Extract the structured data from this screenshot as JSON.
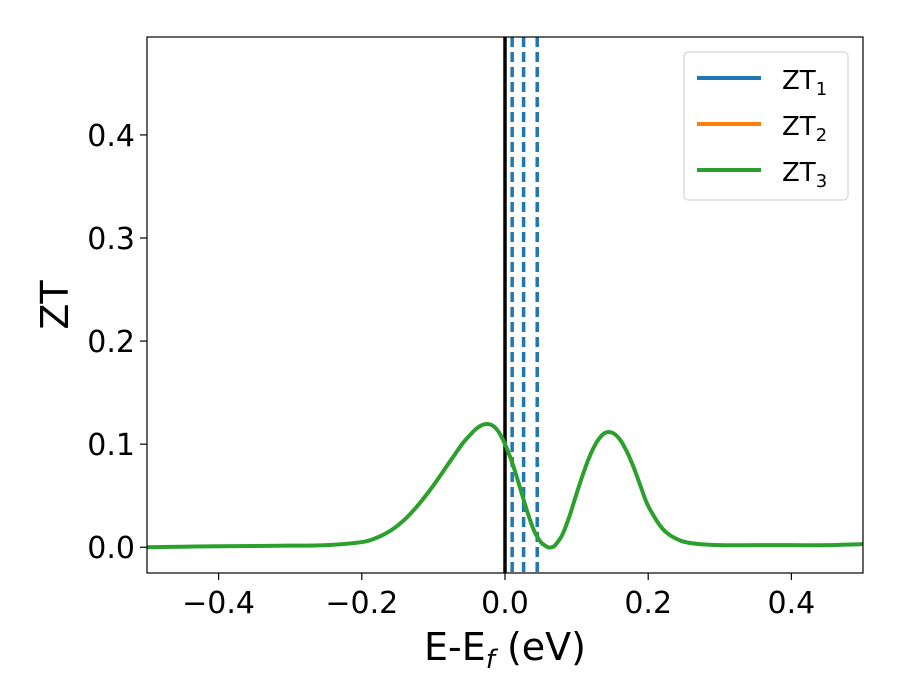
{
  "chart_data": {
    "type": "line",
    "xlabel": {
      "main": "E-E",
      "sub": "f",
      "tail": " (eV)"
    },
    "ylabel": "ZT",
    "xlim": [
      -0.5,
      0.5
    ],
    "ylim": [
      -0.025,
      0.495
    ],
    "xticks": [
      -0.4,
      -0.2,
      0.0,
      0.2,
      0.4
    ],
    "xtick_labels": [
      "−0.4",
      "−0.2",
      "0.0",
      "0.2",
      "0.4"
    ],
    "yticks": [
      0.0,
      0.1,
      0.2,
      0.3,
      0.4
    ],
    "ytick_labels": [
      "0.0",
      "0.1",
      "0.2",
      "0.3",
      "0.4"
    ],
    "grid": false,
    "legend": {
      "placement": "top-right",
      "entries": [
        {
          "main": "ZT",
          "sub": "1",
          "color": "#1f77b4"
        },
        {
          "main": "ZT",
          "sub": "2",
          "color": "#ff7f0e"
        },
        {
          "main": "ZT",
          "sub": "3",
          "color": "#2ca02c"
        }
      ]
    },
    "series": [
      {
        "color": "#2ca02c",
        "x": [
          -0.5,
          -0.45,
          -0.4,
          -0.35,
          -0.3,
          -0.25,
          -0.2,
          -0.18,
          -0.16,
          -0.14,
          -0.12,
          -0.1,
          -0.08,
          -0.06,
          -0.05,
          -0.04,
          -0.03,
          -0.02,
          -0.01,
          0.0,
          0.01,
          0.02,
          0.03,
          0.04,
          0.05,
          0.06,
          0.065,
          0.07,
          0.08,
          0.09,
          0.1,
          0.11,
          0.12,
          0.13,
          0.14,
          0.15,
          0.16,
          0.17,
          0.18,
          0.19,
          0.2,
          0.22,
          0.24,
          0.26,
          0.3,
          0.35,
          0.4,
          0.45,
          0.5
        ],
        "y": [
          0.0,
          0.0005,
          0.001,
          0.0012,
          0.0015,
          0.002,
          0.005,
          0.009,
          0.016,
          0.027,
          0.042,
          0.06,
          0.08,
          0.1,
          0.108,
          0.115,
          0.119,
          0.119,
          0.113,
          0.1,
          0.082,
          0.06,
          0.037,
          0.017,
          0.005,
          0.0,
          0.0,
          0.002,
          0.012,
          0.03,
          0.052,
          0.073,
          0.091,
          0.104,
          0.111,
          0.111,
          0.105,
          0.093,
          0.077,
          0.058,
          0.04,
          0.018,
          0.008,
          0.004,
          0.002,
          0.002,
          0.002,
          0.002,
          0.003
        ]
      }
    ],
    "vlines": [
      {
        "x": 0.0,
        "style": "solid",
        "color": "#000000"
      },
      {
        "x": 0.01,
        "style": "dashed",
        "color": "#1f77b4"
      },
      {
        "x": 0.026,
        "style": "dashed",
        "color": "#1f77b4"
      },
      {
        "x": 0.045,
        "style": "dashed",
        "color": "#1f77b4"
      }
    ]
  }
}
